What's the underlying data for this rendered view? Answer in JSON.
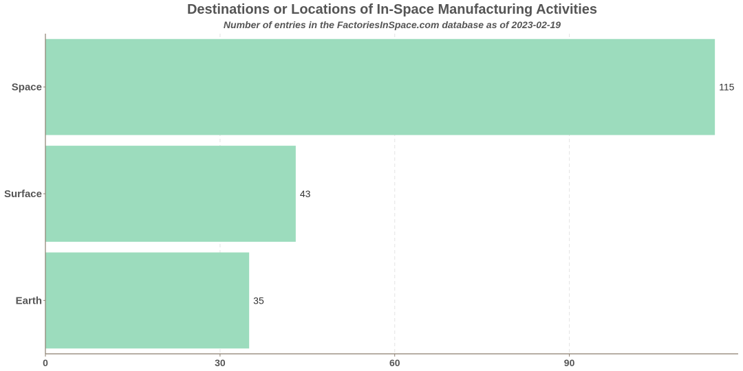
{
  "chart_data": {
    "type": "bar",
    "orientation": "horizontal",
    "title": "Destinations or Locations of In-Space Manufacturing Activities",
    "subtitle": "Number of entries in the FactoriesInSpace.com database as of 2023-02-19",
    "categories": [
      "Space",
      "Surface",
      "Earth"
    ],
    "values": [
      115,
      43,
      35
    ],
    "value_labels": [
      "115",
      "43",
      "35"
    ],
    "xlim": [
      0,
      119
    ],
    "x_ticks": [
      0,
      30,
      60,
      90
    ],
    "x_tick_labels": [
      "0",
      "30",
      "60",
      "90"
    ],
    "xlabel": "",
    "ylabel": "",
    "grid": "vertical dashed",
    "legend": "none",
    "bar_color": "#9cdcbd",
    "axis_color": "#8b7e6e",
    "grid_color": "#e3e3e3"
  }
}
